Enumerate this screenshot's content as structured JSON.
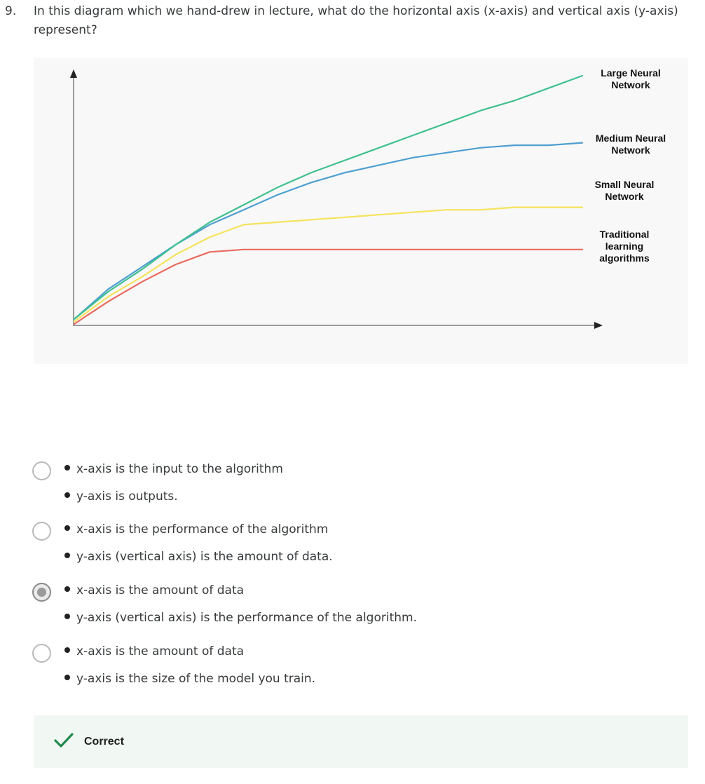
{
  "question": {
    "number": "9.",
    "text": "In this diagram which we hand-drew in lecture, what do the horizontal axis (x-axis) and vertical axis (y-axis) represent?"
  },
  "chart_data": {
    "type": "line",
    "title": "",
    "xlabel": "",
    "ylabel": "",
    "grid": false,
    "legend_placement": "right",
    "series": [
      {
        "name": "Large Neural Network",
        "color": "#3fc08f",
        "values": [
          0.02,
          0.13,
          0.22,
          0.32,
          0.41,
          0.48,
          0.55,
          0.61,
          0.66,
          0.71,
          0.76,
          0.81,
          0.86,
          0.9,
          0.95,
          1.0
        ]
      },
      {
        "name": "Medium Neural Network",
        "color": "#4e9fd1",
        "values": [
          0.02,
          0.14,
          0.23,
          0.32,
          0.4,
          0.46,
          0.52,
          0.57,
          0.61,
          0.64,
          0.67,
          0.69,
          0.71,
          0.72,
          0.72,
          0.73
        ]
      },
      {
        "name": "Small Neural Network",
        "color": "#f5e35c",
        "values": [
          0.01,
          0.11,
          0.19,
          0.28,
          0.35,
          0.4,
          0.41,
          0.42,
          0.43,
          0.44,
          0.45,
          0.46,
          0.46,
          0.47,
          0.47,
          0.47
        ]
      },
      {
        "name": "Traditional learning algorithms",
        "color": "#ea6a5f",
        "values": [
          0.0,
          0.09,
          0.17,
          0.24,
          0.29,
          0.3,
          0.3,
          0.3,
          0.3,
          0.3,
          0.3,
          0.3,
          0.3,
          0.3,
          0.3,
          0.3
        ]
      }
    ]
  },
  "legend_labels": [
    "Large Neural\nNetwork",
    "Medium Neural\nNetwork",
    "Small Neural\nNetwork",
    "Traditional\nlearning\nalgorithms"
  ],
  "options": [
    {
      "checked": false,
      "lines": [
        "x-axis is the input to the algorithm",
        "y-axis is outputs."
      ]
    },
    {
      "checked": false,
      "lines": [
        "x-axis is the performance of the algorithm",
        "y-axis (vertical axis) is the amount of data."
      ]
    },
    {
      "checked": true,
      "lines": [
        "x-axis is the amount of data",
        "y-axis (vertical axis) is the performance of the algorithm."
      ]
    },
    {
      "checked": false,
      "lines": [
        "x-axis is the amount of data",
        "y-axis is the size of the model you train."
      ]
    }
  ],
  "feedback": {
    "label": "Correct",
    "icon": "check-icon",
    "color": "#1f8a4c"
  }
}
